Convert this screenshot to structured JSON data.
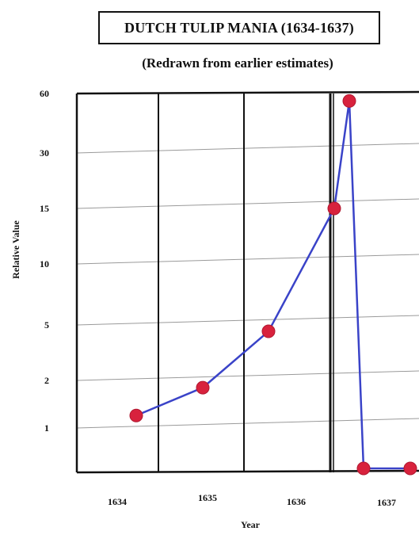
{
  "chart_data": {
    "type": "line",
    "title": "DUTCH TULIP MANIA (1634-1637)",
    "subtitle": "(Redrawn from earlier estimates)",
    "xlabel": "Year",
    "ylabel": "Relative Value",
    "y_ticks": [
      "60",
      "30",
      "15",
      "10",
      "5",
      "2",
      "1"
    ],
    "x_ticks": [
      "1634",
      "1635",
      "1636",
      "1637"
    ],
    "points": [
      {
        "x": 1634.6,
        "y": 1.2
      },
      {
        "x": 1635.5,
        "y": 1.8
      },
      {
        "x": 1636.3,
        "y": 4.5
      },
      {
        "x": 1637.1,
        "y": 15
      },
      {
        "x": 1637.22,
        "y": 55
      },
      {
        "x": 1637.35,
        "y": 0
      },
      {
        "x": 1637.9,
        "y": 0
      }
    ],
    "grid": true,
    "series_color": "#3a43c8",
    "marker_color": "#d8223d"
  }
}
